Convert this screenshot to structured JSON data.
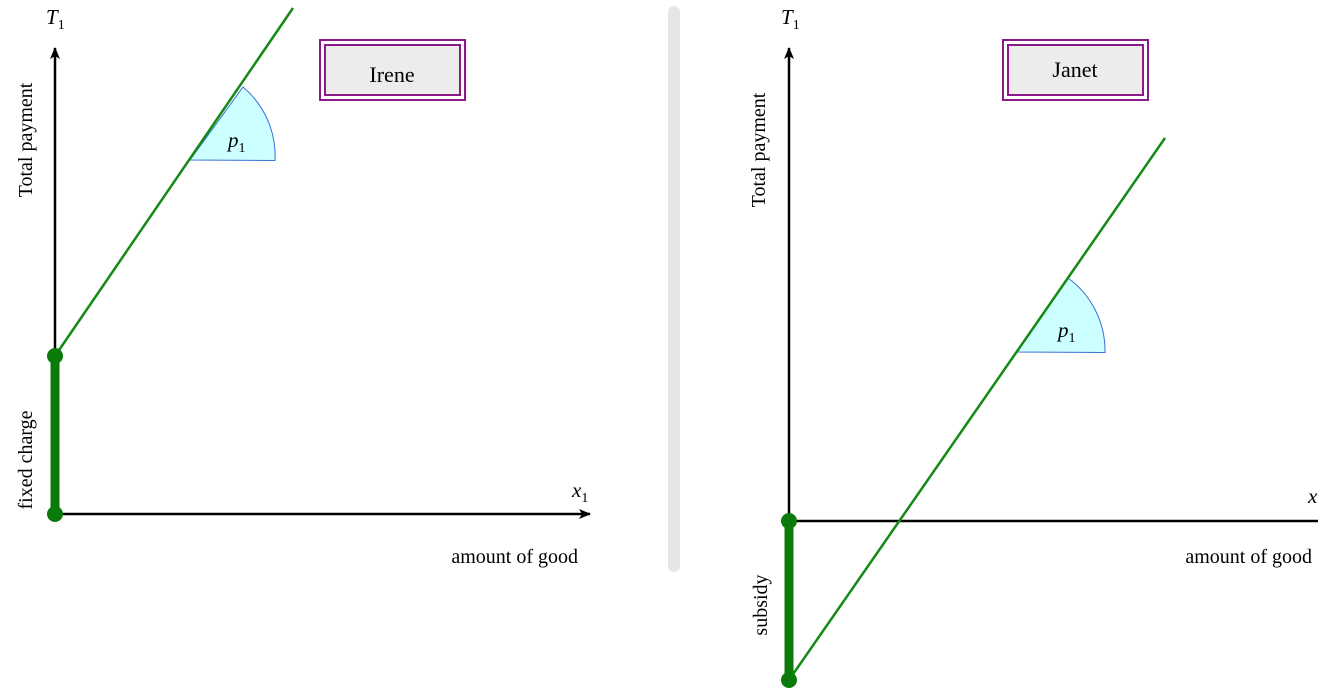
{
  "panels": [
    {
      "box_label": "Irene",
      "y_symbol": "T",
      "y_subscript": "1",
      "y_axis_label": "Total payment",
      "x_symbol": "x",
      "x_subscript": "1",
      "x_axis_label": "amount of good",
      "slope_symbol": "p",
      "slope_subscript": "1",
      "intercept_label": "fixed charge"
    },
    {
      "box_label": "Janet",
      "y_symbol": "T",
      "y_subscript": "1",
      "y_axis_label": "Total payment",
      "x_symbol": "x",
      "x_axis_label": "amount of good",
      "slope_symbol": "p",
      "slope_subscript": "1",
      "intercept_label": "subsidy"
    }
  ]
}
